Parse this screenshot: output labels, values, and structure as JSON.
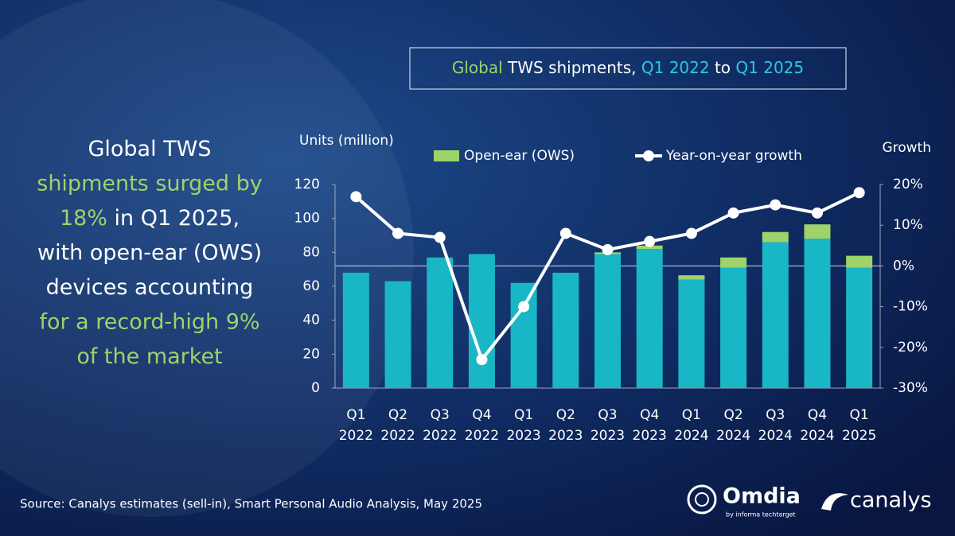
{
  "chart_data": {
    "type": "bar",
    "title_parts": [
      {
        "text": "Global",
        "color": "#9ed36a"
      },
      {
        "text": " TWS shipments, ",
        "color": "#ffffff"
      },
      {
        "text": "Q1 2022",
        "color": "#2ec8e0"
      },
      {
        "text": " to ",
        "color": "#ffffff"
      },
      {
        "text": "Q1 2025",
        "color": "#2ec8e0"
      }
    ],
    "callout": [
      [
        {
          "text": "Global TWS",
          "color": "#ffffff"
        }
      ],
      [
        {
          "text": "shipments surged by",
          "color": "#9ed36a"
        }
      ],
      [
        {
          "text": "18%",
          "color": "#9ed36a"
        },
        {
          "text": " in Q1 2025,",
          "color": "#ffffff"
        }
      ],
      [
        {
          "text": "with open-ear (OWS)",
          "color": "#ffffff"
        }
      ],
      [
        {
          "text": "devices accounting",
          "color": "#ffffff"
        }
      ],
      [
        {
          "text": "for a record-high 9%",
          "color": "#9ed36a"
        }
      ],
      [
        {
          "text": "of the market",
          "color": "#9ed36a"
        }
      ]
    ],
    "y_label": "Units (million)",
    "y2_label": "Growth",
    "categories": [
      "Q1 2022",
      "Q2 2022",
      "Q3 2022",
      "Q4 2022",
      "Q1 2023",
      "Q2 2023",
      "Q3 2023",
      "Q4 2023",
      "Q1 2024",
      "Q2 2024",
      "Q3 2024",
      "Q4 2024",
      "Q1 2025"
    ],
    "series": [
      {
        "color": "#19b6c6",
        "values": [
          68,
          63,
          77,
          79,
          62,
          68,
          79,
          82,
          64,
          71,
          86,
          88,
          71
        ]
      },
      {
        "name": "Open-ear (OWS)",
        "color": "#9ed36a",
        "values": [
          0,
          0,
          0,
          0,
          0,
          0,
          1,
          2,
          2.5,
          6,
          6,
          8.5,
          7
        ]
      },
      {
        "name": "Year-on-year growth",
        "type": "line",
        "axis": "y2",
        "color": "#ffffff",
        "values": [
          17,
          8,
          7,
          -23,
          -10,
          8,
          4,
          6,
          8,
          13,
          15,
          13,
          18
        ]
      }
    ],
    "ylim": [
      0,
      120
    ],
    "yticks": [
      0,
      20,
      40,
      60,
      80,
      100,
      120
    ],
    "y2lim": [
      -30,
      20
    ],
    "y2ticks": [
      {
        "value": -30,
        "label": "-30%"
      },
      {
        "value": -20,
        "label": "-20%"
      },
      {
        "value": -10,
        "label": "-10%"
      },
      {
        "value": 0,
        "label": "0%"
      },
      {
        "value": 10,
        "label": "10%"
      },
      {
        "value": 20,
        "label": "20%"
      }
    ],
    "zero_line": true,
    "source": "Source: Canalys estimates (sell-in), Smart Personal Audio Analysis, May 2025",
    "logos": [
      "Omdia",
      "by informa techtarget",
      "canalys"
    ]
  }
}
